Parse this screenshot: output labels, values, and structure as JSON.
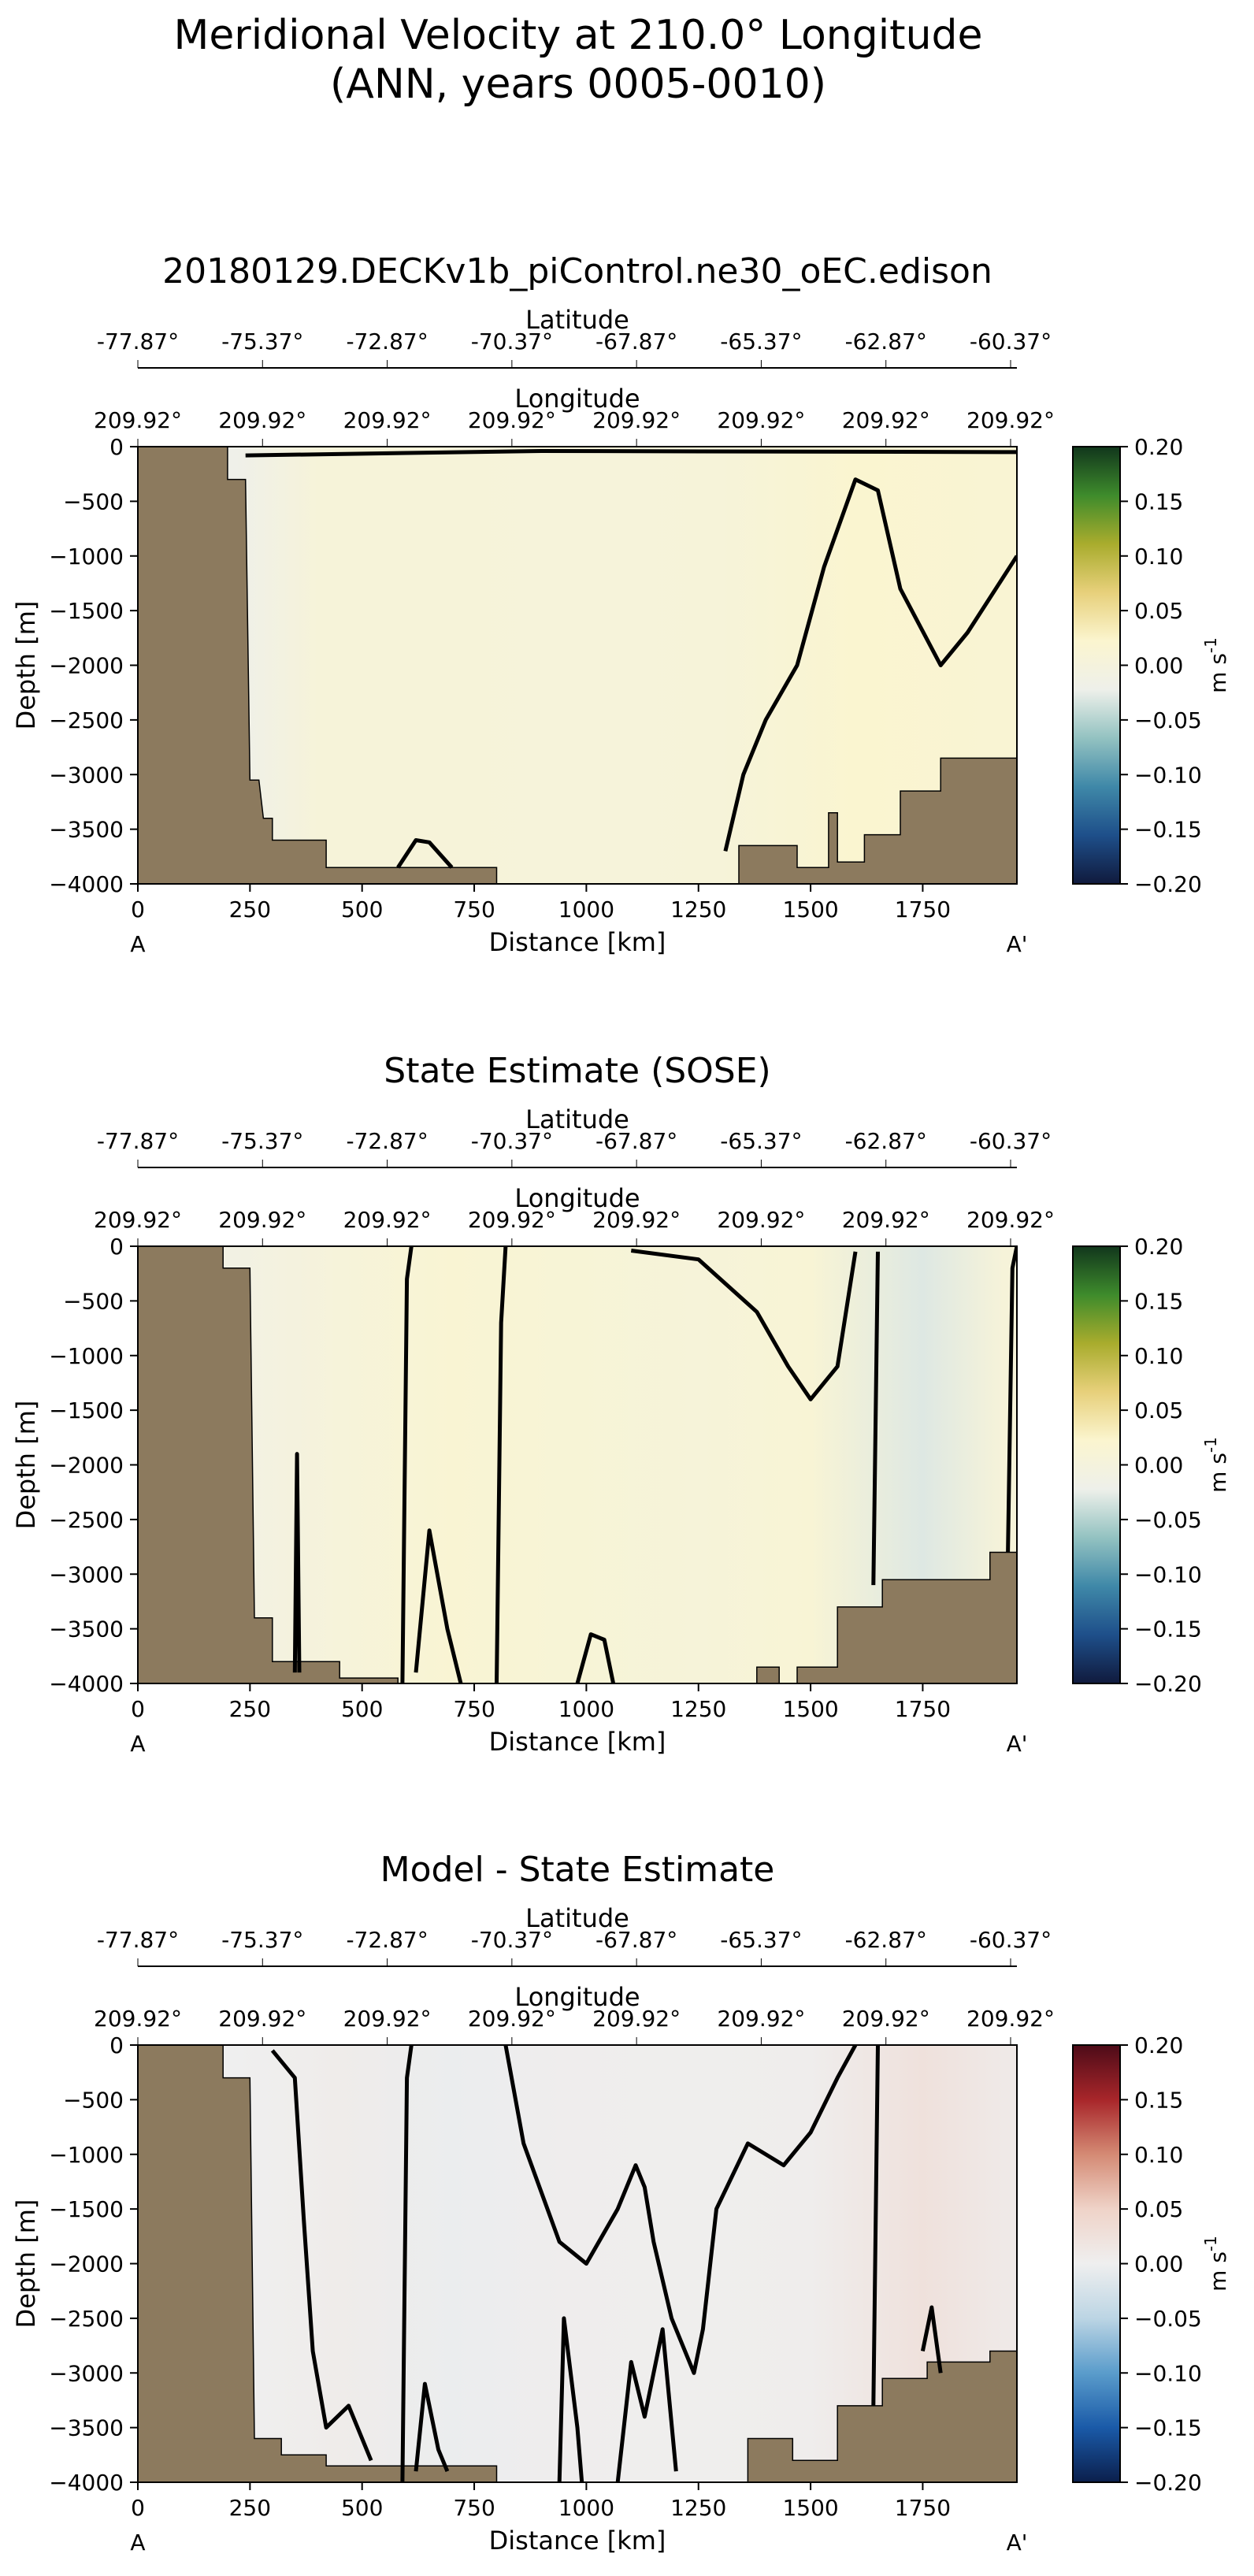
{
  "suptitle": [
    "Meridional Velocity at 210.0° Longitude",
    "(ANN, years 0005-0010)"
  ],
  "colors": {
    "bathymetry": "#8c7a5e",
    "contour": "#000000",
    "cmap_velocity": [
      "#101a3d",
      "#1e4f8a",
      "#3f88a8",
      "#93c2c1",
      "#eef0ea",
      "#fbf5cf",
      "#e7d07b",
      "#a9ac2d",
      "#3e8b2c",
      "#11361c"
    ],
    "cmap_diff": [
      "#0b1f4c",
      "#1a5aa8",
      "#5a9ccb",
      "#bcd5e4",
      "#efefef",
      "#efd3c8",
      "#d48a74",
      "#a8262a",
      "#4d0b18"
    ]
  },
  "chart_data": [
    {
      "type": "heatmap",
      "title": "20180129.DECKv1b_piControl.ne30_oEC.edison",
      "xlabel": "Distance [km]",
      "ylabel": "Depth [m]",
      "xlim": [
        0,
        1960
      ],
      "ylim": [
        -4000,
        0
      ],
      "xticks": [
        0,
        250,
        500,
        750,
        1000,
        1250,
        1500,
        1750
      ],
      "yticks": [
        0,
        -500,
        -1000,
        -1500,
        -2000,
        -2500,
        -3000,
        -3500,
        -4000
      ],
      "lat_label": "Latitude",
      "lat_ticks": [
        "-77.87°",
        "-75.37°",
        "-72.87°",
        "-70.37°",
        "-67.87°",
        "-65.37°",
        "-62.87°",
        "-60.37°"
      ],
      "lon_label": "Longitude",
      "lon_ticks": [
        "209.92°",
        "209.92°",
        "209.92°",
        "209.92°",
        "209.92°",
        "209.92°",
        "209.92°",
        "209.92°"
      ],
      "section_start": "A",
      "section_end": "A'",
      "colorbar": {
        "label": "m s$^{-1}$",
        "min": -0.2,
        "max": 0.2,
        "ticks": [
          "0.20",
          "0.15",
          "0.10",
          "0.05",
          "0.00",
          "-0.05",
          "-0.10",
          "-0.15",
          "-0.20"
        ]
      },
      "cmap": "velocity",
      "field": [
        {
          "x": 220,
          "v": -0.02
        },
        {
          "x": 400,
          "v": 0.005
        },
        {
          "x": 700,
          "v": 0.006
        },
        {
          "x": 1000,
          "v": 0.004
        },
        {
          "x": 1300,
          "v": 0.005
        },
        {
          "x": 1600,
          "v": 0.02
        },
        {
          "x": 1900,
          "v": 0.015
        }
      ],
      "bathymetry": [
        [
          0,
          0
        ],
        [
          200,
          0
        ],
        [
          200,
          -300
        ],
        [
          240,
          -300
        ],
        [
          250,
          -3050
        ],
        [
          270,
          -3050
        ],
        [
          280,
          -3400
        ],
        [
          300,
          -3400
        ],
        [
          300,
          -3600
        ],
        [
          420,
          -3600
        ],
        [
          420,
          -3850
        ],
        [
          800,
          -3850
        ],
        [
          800,
          -4000
        ],
        [
          1340,
          -4000
        ],
        [
          1340,
          -3650
        ],
        [
          1470,
          -3650
        ],
        [
          1470,
          -3850
        ],
        [
          1540,
          -3850
        ],
        [
          1540,
          -3350
        ],
        [
          1560,
          -3350
        ],
        [
          1560,
          -3800
        ],
        [
          1620,
          -3800
        ],
        [
          1620,
          -3550
        ],
        [
          1700,
          -3550
        ],
        [
          1700,
          -3150
        ],
        [
          1790,
          -3150
        ],
        [
          1790,
          -2850
        ],
        [
          1960,
          -2850
        ],
        [
          1960,
          -4000
        ],
        [
          0,
          -4000
        ]
      ],
      "zero_contours": [
        [
          [
            1310,
            -3700
          ],
          [
            1350,
            -3000
          ],
          [
            1400,
            -2500
          ],
          [
            1470,
            -2000
          ],
          [
            1530,
            -1100
          ],
          [
            1600,
            -300
          ],
          [
            1650,
            -400
          ],
          [
            1700,
            -1300
          ],
          [
            1790,
            -2000
          ],
          [
            1850,
            -1700
          ],
          [
            1960,
            -1000
          ]
        ],
        [
          [
            580,
            -3850
          ],
          [
            620,
            -3600
          ],
          [
            650,
            -3620
          ],
          [
            700,
            -3850
          ]
        ],
        [
          [
            240,
            -80
          ],
          [
            900,
            -40
          ],
          [
            1960,
            -50
          ]
        ]
      ]
    },
    {
      "type": "heatmap",
      "title": "State Estimate (SOSE)",
      "xlabel": "Distance [km]",
      "ylabel": "Depth [m]",
      "xlim": [
        0,
        1960
      ],
      "ylim": [
        -4000,
        0
      ],
      "xticks": [
        0,
        250,
        500,
        750,
        1000,
        1250,
        1500,
        1750
      ],
      "yticks": [
        0,
        -500,
        -1000,
        -1500,
        -2000,
        -2500,
        -3000,
        -3500,
        -4000
      ],
      "lat_label": "Latitude",
      "lat_ticks": [
        "-77.87°",
        "-75.37°",
        "-72.87°",
        "-70.37°",
        "-67.87°",
        "-65.37°",
        "-62.87°",
        "-60.37°"
      ],
      "lon_label": "Longitude",
      "lon_ticks": [
        "209.92°",
        "209.92°",
        "209.92°",
        "209.92°",
        "209.92°",
        "209.92°",
        "209.92°",
        "209.92°"
      ],
      "section_start": "A",
      "section_end": "A'",
      "colorbar": {
        "label": "m s$^{-1}$",
        "min": -0.2,
        "max": 0.2,
        "ticks": [
          "0.20",
          "0.15",
          "0.10",
          "0.05",
          "0.00",
          "-0.05",
          "-0.10",
          "-0.15",
          "-0.20"
        ]
      },
      "cmap": "velocity",
      "field": [
        {
          "x": 220,
          "v": -0.01
        },
        {
          "x": 450,
          "v": 0.004
        },
        {
          "x": 700,
          "v": 0.015
        },
        {
          "x": 950,
          "v": 0.01
        },
        {
          "x": 1250,
          "v": 0.006
        },
        {
          "x": 1500,
          "v": 0.012
        },
        {
          "x": 1750,
          "v": -0.03
        },
        {
          "x": 1930,
          "v": 0.005
        }
      ],
      "bathymetry": [
        [
          0,
          0
        ],
        [
          190,
          0
        ],
        [
          190,
          -200
        ],
        [
          250,
          -200
        ],
        [
          260,
          -3400
        ],
        [
          300,
          -3400
        ],
        [
          300,
          -3800
        ],
        [
          450,
          -3800
        ],
        [
          450,
          -3950
        ],
        [
          580,
          -3950
        ],
        [
          580,
          -4000
        ],
        [
          1380,
          -4000
        ],
        [
          1380,
          -3850
        ],
        [
          1430,
          -3850
        ],
        [
          1430,
          -4000
        ],
        [
          1470,
          -4000
        ],
        [
          1470,
          -3850
        ],
        [
          1560,
          -3850
        ],
        [
          1560,
          -3300
        ],
        [
          1660,
          -3300
        ],
        [
          1660,
          -3050
        ],
        [
          1900,
          -3050
        ],
        [
          1900,
          -2800
        ],
        [
          1960,
          -2800
        ],
        [
          1960,
          -4000
        ],
        [
          0,
          -4000
        ]
      ],
      "zero_contours": [
        [
          [
            590,
            -4000
          ],
          [
            600,
            -300
          ],
          [
            610,
            0
          ]
        ],
        [
          [
            800,
            -4000
          ],
          [
            810,
            -700
          ],
          [
            820,
            0
          ]
        ],
        [
          [
            1100,
            -40
          ],
          [
            1250,
            -120
          ],
          [
            1380,
            -600
          ],
          [
            1450,
            -1100
          ],
          [
            1500,
            -1400
          ],
          [
            1560,
            -1100
          ],
          [
            1600,
            -50
          ]
        ],
        [
          [
            1640,
            -3100
          ],
          [
            1650,
            -50
          ]
        ],
        [
          [
            350,
            -3900
          ],
          [
            355,
            -1900
          ],
          [
            360,
            -3900
          ]
        ],
        [
          [
            620,
            -3900
          ],
          [
            650,
            -2600
          ],
          [
            690,
            -3500
          ],
          [
            720,
            -4000
          ]
        ],
        [
          [
            980,
            -4000
          ],
          [
            1010,
            -3550
          ],
          [
            1040,
            -3600
          ],
          [
            1060,
            -4000
          ]
        ],
        [
          [
            1940,
            -2800
          ],
          [
            1950,
            -200
          ],
          [
            1960,
            0
          ]
        ]
      ]
    },
    {
      "type": "heatmap",
      "title": "Model - State Estimate",
      "xlabel": "Distance [km]",
      "ylabel": "Depth [m]",
      "xlim": [
        0,
        1960
      ],
      "ylim": [
        -4000,
        0
      ],
      "xticks": [
        0,
        250,
        500,
        750,
        1000,
        1250,
        1500,
        1750
      ],
      "yticks": [
        0,
        -500,
        -1000,
        -1500,
        -2000,
        -2500,
        -3000,
        -3500,
        -4000
      ],
      "lat_label": "Latitude",
      "lat_ticks": [
        "-77.87°",
        "-75.37°",
        "-72.87°",
        "-70.37°",
        "-67.87°",
        "-65.37°",
        "-62.87°",
        "-60.37°"
      ],
      "lon_label": "Longitude",
      "lon_ticks": [
        "209.92°",
        "209.92°",
        "209.92°",
        "209.92°",
        "209.92°",
        "209.92°",
        "209.92°",
        "209.92°"
      ],
      "section_start": "A",
      "section_end": "A'",
      "colorbar": {
        "label": "m s$^{-1}$",
        "min": -0.2,
        "max": 0.2,
        "ticks": [
          "0.20",
          "0.15",
          "0.10",
          "0.05",
          "0.00",
          "-0.05",
          "-0.10",
          "-0.15",
          "-0.20"
        ]
      },
      "cmap": "diff",
      "field": [
        {
          "x": 220,
          "v": 0.0
        },
        {
          "x": 450,
          "v": 0.006
        },
        {
          "x": 700,
          "v": -0.004
        },
        {
          "x": 950,
          "v": 0.003
        },
        {
          "x": 1250,
          "v": 0.002
        },
        {
          "x": 1500,
          "v": 0.004
        },
        {
          "x": 1750,
          "v": 0.025
        },
        {
          "x": 1930,
          "v": 0.01
        }
      ],
      "bathymetry": [
        [
          0,
          0
        ],
        [
          190,
          0
        ],
        [
          190,
          -300
        ],
        [
          250,
          -300
        ],
        [
          260,
          -3600
        ],
        [
          320,
          -3600
        ],
        [
          320,
          -3750
        ],
        [
          420,
          -3750
        ],
        [
          420,
          -3850
        ],
        [
          800,
          -3850
        ],
        [
          800,
          -4000
        ],
        [
          1360,
          -4000
        ],
        [
          1360,
          -3600
        ],
        [
          1460,
          -3600
        ],
        [
          1460,
          -3800
        ],
        [
          1560,
          -3800
        ],
        [
          1560,
          -3300
        ],
        [
          1660,
          -3300
        ],
        [
          1660,
          -3050
        ],
        [
          1760,
          -3050
        ],
        [
          1760,
          -2900
        ],
        [
          1900,
          -2900
        ],
        [
          1900,
          -2800
        ],
        [
          1960,
          -2800
        ],
        [
          1960,
          -4000
        ],
        [
          0,
          -4000
        ]
      ],
      "zero_contours": [
        [
          [
            300,
            -50
          ],
          [
            350,
            -300
          ],
          [
            370,
            -1600
          ],
          [
            390,
            -2800
          ],
          [
            420,
            -3500
          ],
          [
            470,
            -3300
          ],
          [
            520,
            -3800
          ]
        ],
        [
          [
            590,
            -4000
          ],
          [
            600,
            -300
          ],
          [
            610,
            0
          ]
        ],
        [
          [
            820,
            0
          ],
          [
            860,
            -900
          ],
          [
            940,
            -1800
          ],
          [
            1000,
            -2000
          ],
          [
            1070,
            -1500
          ],
          [
            1110,
            -1100
          ],
          [
            1130,
            -1300
          ],
          [
            1150,
            -1800
          ],
          [
            1190,
            -2500
          ],
          [
            1240,
            -3000
          ],
          [
            1260,
            -2600
          ],
          [
            1290,
            -1500
          ],
          [
            1360,
            -900
          ],
          [
            1440,
            -1100
          ],
          [
            1500,
            -800
          ],
          [
            1560,
            -300
          ],
          [
            1600,
            0
          ]
        ],
        [
          [
            620,
            -3900
          ],
          [
            640,
            -3100
          ],
          [
            670,
            -3700
          ],
          [
            690,
            -3900
          ]
        ],
        [
          [
            940,
            -4000
          ],
          [
            950,
            -2500
          ],
          [
            980,
            -3500
          ],
          [
            990,
            -4000
          ]
        ],
        [
          [
            1070,
            -4000
          ],
          [
            1100,
            -2900
          ],
          [
            1130,
            -3400
          ],
          [
            1170,
            -2600
          ],
          [
            1200,
            -3900
          ]
        ],
        [
          [
            1640,
            -3300
          ],
          [
            1650,
            0
          ]
        ],
        [
          [
            1750,
            -2800
          ],
          [
            1770,
            -2400
          ],
          [
            1790,
            -3000
          ]
        ]
      ]
    }
  ]
}
